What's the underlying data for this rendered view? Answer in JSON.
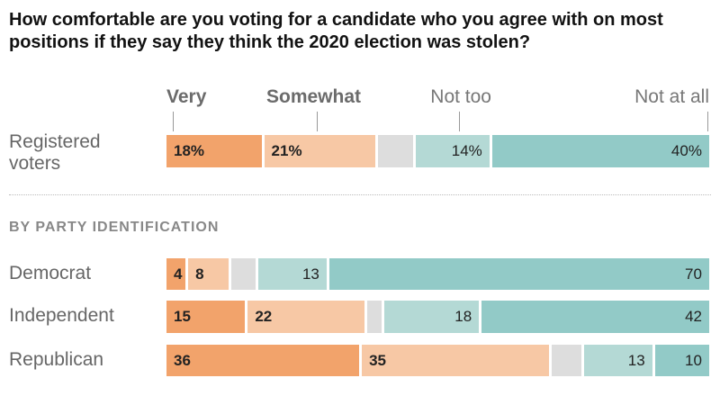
{
  "chart_data": {
    "type": "bar",
    "orientation": "horizontal",
    "stacked": true,
    "title": "How comfortable are you voting for a candidate who you agree with on most positions if they say they think the 2020 election was stolen?",
    "series": [
      {
        "name": "Very",
        "color": "#f2a36b",
        "label_align": "left"
      },
      {
        "name": "Somewhat",
        "color": "#f7c8a5",
        "label_align": "left"
      },
      {
        "name": "",
        "color": "#dddddd",
        "label_align": "none"
      },
      {
        "name": "Not too",
        "color": "#b4d9d5",
        "label_align": "right"
      },
      {
        "name": "Not at all",
        "color": "#92cac7",
        "label_align": "right"
      }
    ],
    "overall": {
      "category": "Registered voters",
      "values": [
        18,
        21,
        7,
        14,
        40
      ],
      "labels": [
        "18%",
        "21%",
        "",
        "14%",
        "40%"
      ]
    },
    "section_title": "BY PARTY IDENTIFICATION",
    "groups": [
      {
        "category": "Democrat",
        "values": [
          4,
          8,
          5,
          13,
          70
        ],
        "labels": [
          "4",
          "8",
          "",
          "13",
          "70"
        ]
      },
      {
        "category": "Independent",
        "values": [
          15,
          22,
          3,
          18,
          42
        ],
        "labels": [
          "15",
          "22",
          "",
          "18",
          "42"
        ]
      },
      {
        "category": "Republican",
        "values": [
          36,
          35,
          6,
          13,
          10
        ],
        "labels": [
          "36",
          "35",
          "",
          "13",
          "10"
        ]
      }
    ],
    "xlim": [
      0,
      100
    ]
  }
}
